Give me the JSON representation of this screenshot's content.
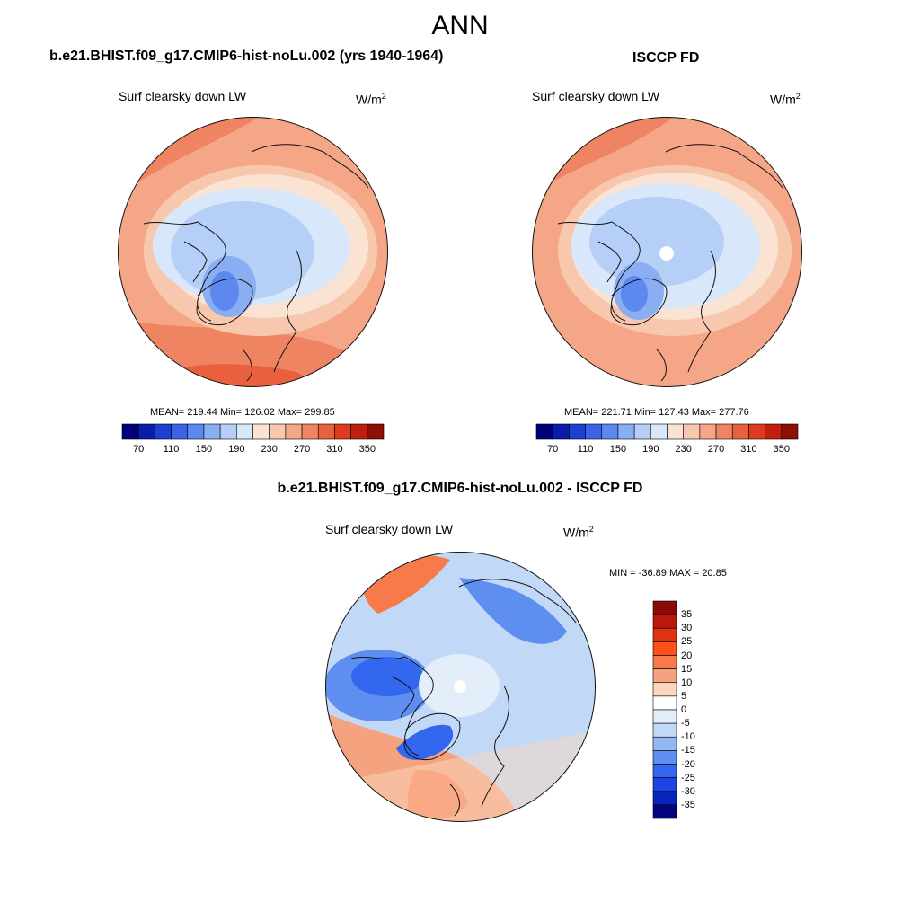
{
  "title": "ANN",
  "panels": [
    {
      "case": "b.e21.BHIST.f09_g17.CMIP6-hist-noLu.002 (yrs 1940-1964)",
      "variable": "Surf clearsky down LW",
      "units": "W/m",
      "units_sup": "2",
      "stats": "MEAN= 219.44  Min= 126.02  Max= 299.85"
    },
    {
      "case": "ISCCP FD",
      "variable": "Surf clearsky down LW",
      "units": "W/m",
      "units_sup": "2",
      "stats": "MEAN= 221.71  Min= 127.43  Max= 277.76"
    },
    {
      "case": "b.e21.BHIST.f09_g17.CMIP6-hist-noLu.002 - ISCCP FD",
      "variable": "Surf clearsky down LW",
      "units": "W/m",
      "units_sup": "2",
      "stats": "MIN = -36.89 MAX =  20.85"
    }
  ],
  "colorbar_abs": {
    "ticks": [
      "70",
      "110",
      "150",
      "190",
      "230",
      "270",
      "310",
      "350"
    ],
    "colors": [
      "#00007a",
      "#0a1ca8",
      "#1d3fd0",
      "#3a64e8",
      "#5c88ef",
      "#8aaef2",
      "#b5cff6",
      "#d8e7fa",
      "#fbe3d3",
      "#f8c8ae",
      "#f4a687",
      "#ef8462",
      "#e9603f",
      "#dc3b20",
      "#c01f0d",
      "#8e0f05"
    ]
  },
  "colorbar_diff": {
    "ticks": [
      "35",
      "30",
      "25",
      "20",
      "15",
      "10",
      "5",
      "0",
      "-5",
      "-10",
      "-15",
      "-20",
      "-25",
      "-30",
      "-35"
    ],
    "colors": [
      "#8b0a05",
      "#b8190a",
      "#de3211",
      "#fb5118",
      "#f67a4a",
      "#f5a27e",
      "#fbd7bf",
      "#ffffff",
      "#e4eefb",
      "#c1d8f7",
      "#94b7f3",
      "#5d8ef0",
      "#3467ef",
      "#1a44e3",
      "#0a24bb",
      "#02057c"
    ]
  },
  "map_palette": {
    "deep_blue": "#3a64e8",
    "mid_blue": "#8aaef2",
    "light_blue": "#d8e7fa",
    "pale": "#fbe3d3",
    "peach": "#f8c8ae",
    "salmon": "#f4a687",
    "orange": "#ef8462",
    "red": "#e9603f"
  }
}
